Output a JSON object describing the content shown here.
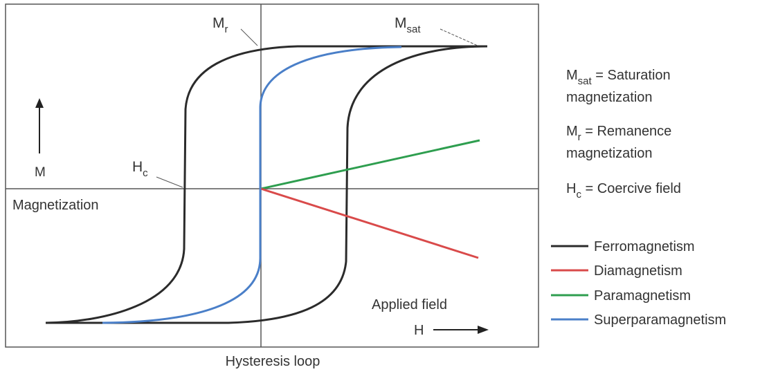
{
  "diagram": {
    "caption": "Hysteresis loop",
    "axes": {
      "y_arrow_label": "M",
      "y_title": "Magnetization",
      "x_title": "Applied field",
      "x_arrow_label": "H"
    },
    "annotations": {
      "mr": {
        "base": "M",
        "sub": "r"
      },
      "msat": {
        "base": "M",
        "sub": "sat"
      },
      "hc": {
        "base": "H",
        "sub": "c"
      }
    },
    "definitions": [
      {
        "base": "M",
        "sub": "sat",
        "line1": " = Saturation",
        "line2": "magnetization"
      },
      {
        "base": "M",
        "sub": "r",
        "line1": " = Remanence",
        "line2": "magnetization"
      },
      {
        "base": "H",
        "sub": "c",
        "line1": " = Coercive field",
        "line2": ""
      }
    ],
    "legend": [
      {
        "label": "Ferromagnetism",
        "color": "#2b2b2b"
      },
      {
        "label": "Diamagnetism",
        "color": "#d94a4a"
      },
      {
        "label": "Paramagnetism",
        "color": "#2e9e4f"
      },
      {
        "label": "Superparamagnetism",
        "color": "#4a7fc8"
      }
    ]
  }
}
